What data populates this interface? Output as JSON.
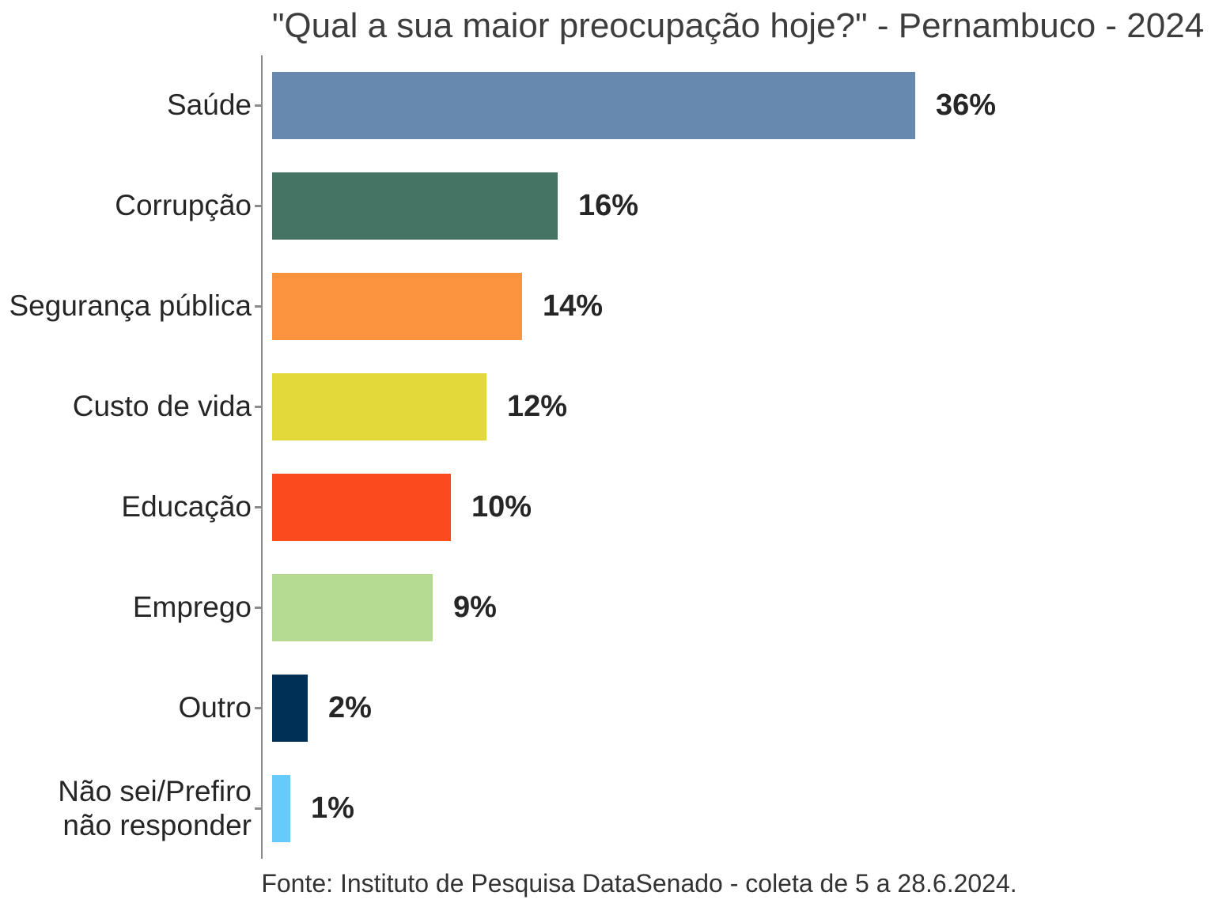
{
  "title": "\"Qual a sua maior preocupação hoje?\" - Pernambuco - 2024",
  "footer": "Fonte: Instituto de Pesquisa DataSenado - coleta de 5 a 28.6.2024.",
  "chart_data": {
    "type": "bar",
    "orientation": "horizontal",
    "title": "\"Qual a sua maior preocupação hoje?\" - Pernambuco - 2024",
    "categories": [
      "Saúde",
      "Corrupção",
      "Segurança pública",
      "Custo de vida",
      "Educação",
      "Emprego",
      "Outro",
      "Não sei/Prefiro\nnão responder"
    ],
    "values": [
      36,
      16,
      14,
      12,
      10,
      9,
      2,
      1
    ],
    "value_labels": [
      "36%",
      "16%",
      "14%",
      "12%",
      "10%",
      "9%",
      "2%",
      "1%"
    ],
    "colors": [
      "#6789B0",
      "#467464",
      "#F9933E",
      "#E4D93B",
      "#FB4A1E",
      "#B5DA92",
      "#003056",
      "#66CBF9"
    ],
    "xlim": [
      0,
      36
    ],
    "unit": "%",
    "grid": false,
    "legend": false,
    "source": "Fonte: Instituto de Pesquisa DataSenado - coleta de 5 a 28.6.2024.",
    "axis_color": "#8c8c8c",
    "text_color": "#262626",
    "title_color": "#3d3d3d"
  }
}
